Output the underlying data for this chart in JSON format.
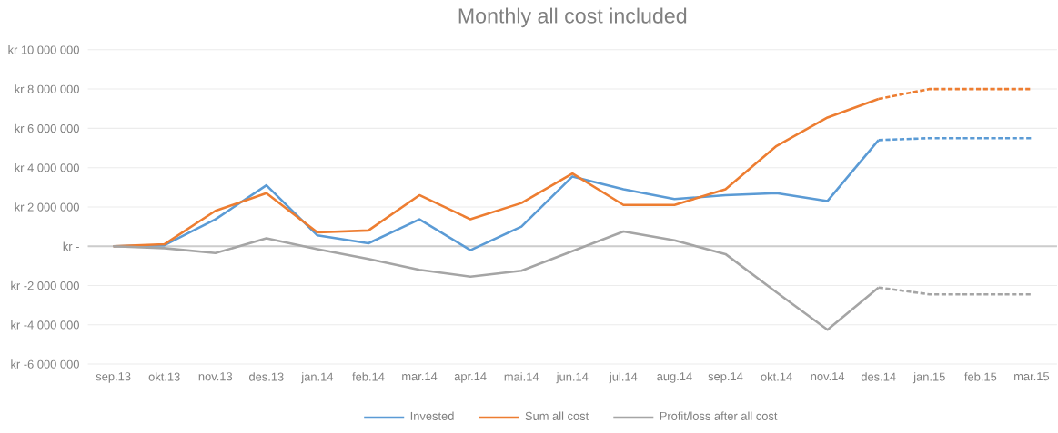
{
  "chart_data": {
    "type": "line",
    "title": "Monthly all cost included",
    "categories": [
      "sep.13",
      "okt.13",
      "nov.13",
      "des.13",
      "jan.14",
      "feb.14",
      "mar.14",
      "apr.14",
      "mai.14",
      "jun.14",
      "jul.14",
      "aug.14",
      "sep.14",
      "okt.14",
      "nov.14",
      "des.14",
      "jan.15",
      "feb.15",
      "mar.15"
    ],
    "series": [
      {
        "name": "Invested",
        "color": "#5b9bd5",
        "values": [
          0,
          50000,
          1370000,
          3100000,
          550000,
          150000,
          1370000,
          -200000,
          1000000,
          3550000,
          2900000,
          2400000,
          2600000,
          2700000,
          2300000,
          5400000,
          null,
          null,
          null
        ]
      },
      {
        "name": "Sum all cost",
        "color": "#ed7d31",
        "values": [
          0,
          100000,
          1800000,
          2700000,
          700000,
          800000,
          2600000,
          1370000,
          2200000,
          3700000,
          2100000,
          2100000,
          2900000,
          5100000,
          6550000,
          7500000,
          null,
          null,
          null
        ]
      },
      {
        "name": "Profit/loss after all cost",
        "color": "#a5a5a5",
        "values": [
          0,
          -100000,
          -350000,
          400000,
          -150000,
          -650000,
          -1200000,
          -1550000,
          -1250000,
          -250000,
          750000,
          300000,
          -400000,
          -2350000,
          -4250000,
          -2100000,
          null,
          null,
          null
        ]
      },
      {
        "color": "#5b9bd5",
        "line_style": "dotted",
        "values": [
          null,
          null,
          null,
          null,
          null,
          null,
          null,
          null,
          null,
          null,
          null,
          null,
          null,
          null,
          null,
          5400000,
          5500000,
          5500000,
          5500000
        ]
      },
      {
        "color": "#ed7d31",
        "line_style": "dotted",
        "values": [
          null,
          null,
          null,
          null,
          null,
          null,
          null,
          null,
          null,
          null,
          null,
          null,
          null,
          null,
          null,
          7500000,
          8000000,
          8000000,
          8000000
        ]
      },
      {
        "color": "#a5a5a5",
        "line_style": "dotted",
        "values": [
          null,
          null,
          null,
          null,
          null,
          null,
          null,
          null,
          null,
          null,
          null,
          null,
          null,
          null,
          null,
          -2100000,
          -2450000,
          -2450000,
          -2450000
        ]
      }
    ],
    "ylim": [
      -6000000,
      10000000
    ],
    "yticks": [
      {
        "value": -6000000,
        "label": "kr -6 000 000"
      },
      {
        "value": -4000000,
        "label": "kr -4 000 000"
      },
      {
        "value": -2000000,
        "label": "kr -2 000 000"
      },
      {
        "value": 0,
        "label": "kr -"
      },
      {
        "value": 2000000,
        "label": "kr 2 000 000"
      },
      {
        "value": 4000000,
        "label": "kr 4 000 000"
      },
      {
        "value": 6000000,
        "label": "kr 6 000 000"
      },
      {
        "value": 8000000,
        "label": "kr 8 000 000"
      },
      {
        "value": 10000000,
        "label": "kr 10 000 000"
      }
    ],
    "grid": "y",
    "legend": "bottom",
    "line_style": "solid",
    "marker": "none"
  }
}
